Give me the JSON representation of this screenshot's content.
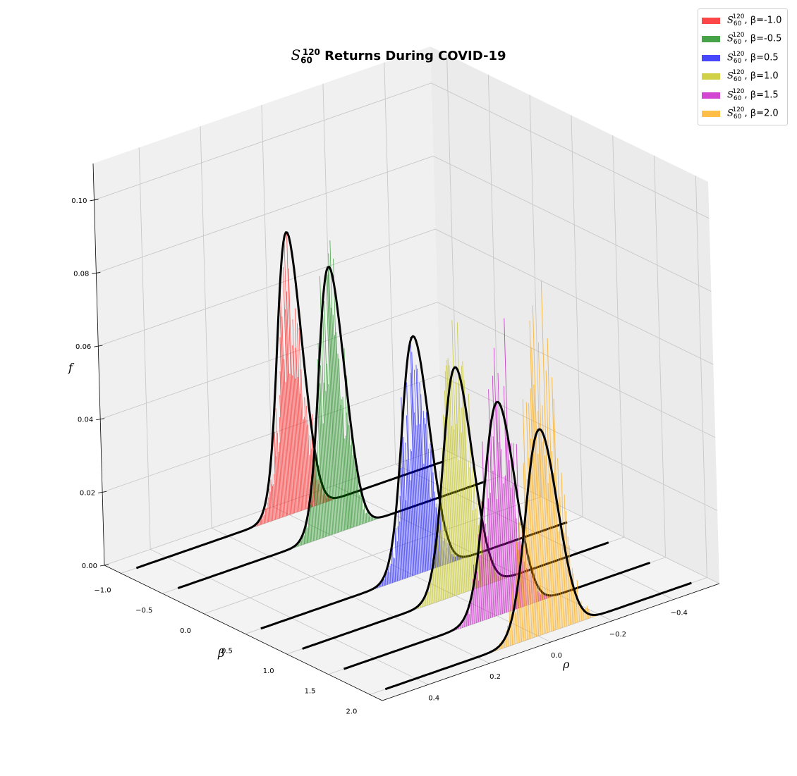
{
  "chart_data": {
    "type": "3d-histogram",
    "title": {
      "symbol": "S",
      "sub": "60",
      "sup": "120",
      "text": " Returns During COVID-19"
    },
    "xlabel": "ρ",
    "ylabel": "β",
    "zlabel": "f",
    "xlim": [
      -0.55,
      0.55
    ],
    "ylim": [
      -1.2,
      2.15
    ],
    "zlim": [
      0,
      0.11
    ],
    "x_ticks": [
      "−0.4",
      "−0.2",
      "0.0",
      "0.2",
      "0.4"
    ],
    "y_ticks": [
      "−1.0",
      "−0.5",
      "0.0",
      "0.5",
      "1.0",
      "1.5",
      "2.0"
    ],
    "z_ticks": [
      "0.00",
      "0.02",
      "0.04",
      "0.06",
      "0.08",
      "0.10"
    ],
    "legend_position": "top-right",
    "grid": true,
    "fit_curve_color": "#000000",
    "series": [
      {
        "name": "β=-1.0",
        "beta": -1.0,
        "color": "#ff0000",
        "mu": -0.015,
        "sigma": 0.04,
        "peak": 0.077,
        "hist_peak": 0.077
      },
      {
        "name": "β=-0.5",
        "beta": -0.5,
        "color": "#008000",
        "mu": -0.016,
        "sigma": 0.042,
        "peak": 0.073,
        "hist_peak": 0.08
      },
      {
        "name": "β=0.5",
        "beta": 0.5,
        "color": "#0000ff",
        "mu": -0.018,
        "sigma": 0.045,
        "peak": 0.065,
        "hist_peak": 0.065
      },
      {
        "name": "β=1.0",
        "beta": 1.0,
        "color": "#bfbf00",
        "mu": -0.019,
        "sigma": 0.047,
        "peak": 0.062,
        "hist_peak": 0.075
      },
      {
        "name": "β=1.5",
        "beta": 1.5,
        "color": "#bf00bf",
        "mu": -0.02,
        "sigma": 0.05,
        "peak": 0.058,
        "hist_peak": 0.08
      },
      {
        "name": "β=2.0",
        "beta": 2.0,
        "color": "#ffa500",
        "mu": -0.021,
        "sigma": 0.052,
        "peak": 0.056,
        "hist_peak": 0.096
      }
    ]
  }
}
